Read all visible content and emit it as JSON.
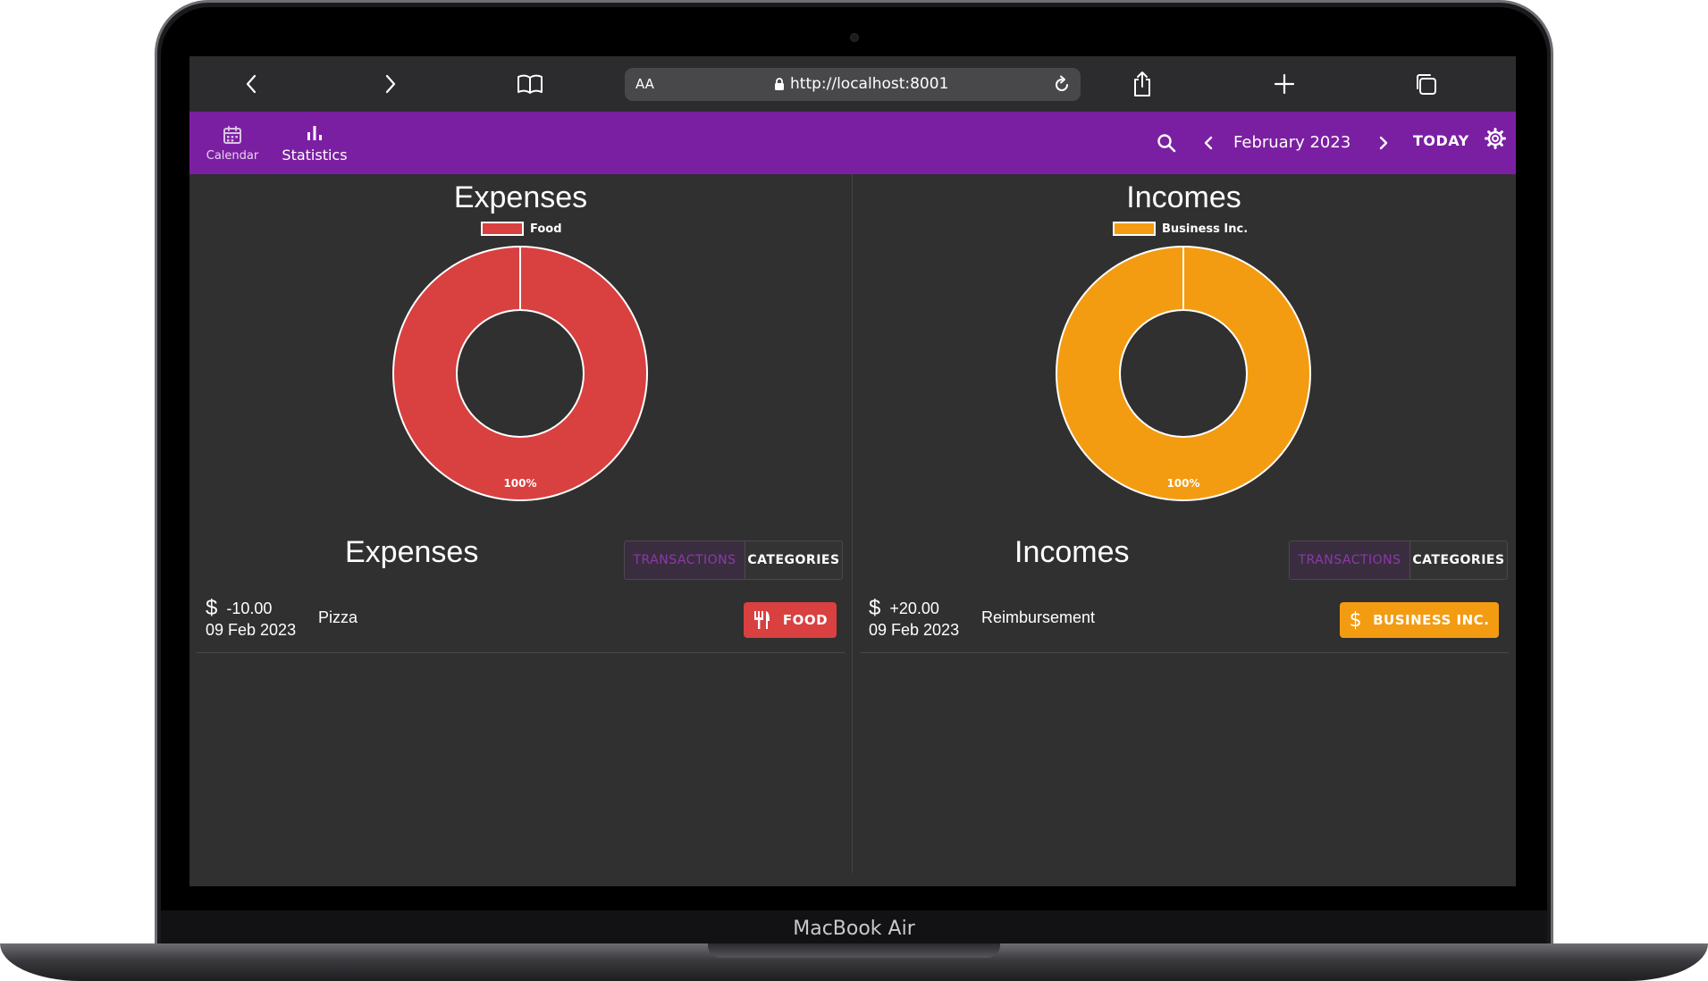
{
  "device": {
    "label": "MacBook Air"
  },
  "browser": {
    "text_size_label": "AA",
    "url": "http://localhost:8001",
    "icons": [
      "back-icon",
      "forward-icon",
      "bookmarks-icon",
      "lock-icon",
      "reload-icon",
      "share-icon",
      "new-tab-icon",
      "tabs-icon"
    ]
  },
  "appbar": {
    "nav": [
      {
        "label": "Calendar",
        "icon": "calendar-icon"
      },
      {
        "label": "Statistics",
        "icon": "bar-chart-icon"
      }
    ],
    "month": "February 2023",
    "today_label": "TODAY",
    "icons": [
      "search-icon",
      "chevron-left-icon",
      "chevron-right-icon",
      "gear-icon"
    ],
    "color": "#7b1fa2"
  },
  "expenses": {
    "chart_title": "Expenses",
    "list_title": "Expenses",
    "tabs": {
      "transactions": "TRANSACTIONS",
      "categories": "CATEGORIES"
    },
    "transactions": [
      {
        "amount": "-10.00",
        "date": "09 Feb 2023",
        "description": "Pizza",
        "category": "FOOD",
        "category_icon": "fork-knife-icon",
        "color": "#d94040"
      }
    ]
  },
  "incomes": {
    "chart_title": "Incomes",
    "list_title": "Incomes",
    "tabs": {
      "transactions": "TRANSACTIONS",
      "categories": "CATEGORIES"
    },
    "transactions": [
      {
        "amount": "+20.00",
        "date": "09 Feb 2023",
        "description": "Reimbursement",
        "category": "BUSINESS INC.",
        "category_icon": "dollar-icon",
        "color": "#f39c12"
      }
    ]
  },
  "chart_data": [
    {
      "type": "pie",
      "title": "Expenses",
      "categories": [
        "Food"
      ],
      "values": [
        100
      ],
      "data_labels": [
        "100%"
      ],
      "colors": [
        "#d94040"
      ],
      "legend": "top"
    },
    {
      "type": "pie",
      "title": "Incomes",
      "categories": [
        "Business Inc."
      ],
      "values": [
        100
      ],
      "data_labels": [
        "100%"
      ],
      "colors": [
        "#f39c12"
      ],
      "legend": "top"
    }
  ]
}
